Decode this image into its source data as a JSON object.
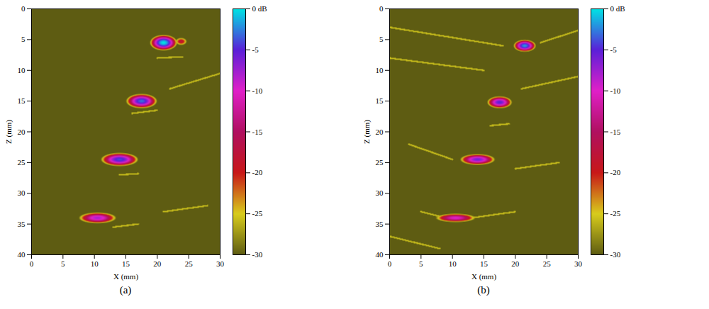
{
  "chart_data": [
    {
      "type": "heatmap",
      "caption": "(a)",
      "x_label": "X (mm)",
      "y_label": "Z (mm)",
      "xlim": [
        0,
        30
      ],
      "xticks": [
        0,
        5,
        10,
        15,
        20,
        25,
        30
      ],
      "ylim": [
        0,
        40
      ],
      "yticks": [
        0,
        5,
        10,
        15,
        20,
        25,
        30,
        35,
        40
      ],
      "background": -30,
      "spots": [
        {
          "x": 21,
          "z": 5.5,
          "peak": 0,
          "rx": 2.2,
          "rz": 1.3
        },
        {
          "x": 23.8,
          "z": 5.3,
          "peak": -18,
          "rx": 0.9,
          "rz": 0.6
        },
        {
          "x": 17.5,
          "z": 15,
          "peak": -3,
          "rx": 2.5,
          "rz": 1.2
        },
        {
          "x": 14,
          "z": 24.5,
          "peak": -4,
          "rx": 3,
          "rz": 1.1
        },
        {
          "x": 10.5,
          "z": 34,
          "peak": -8,
          "rx": 3,
          "rz": 0.9
        }
      ],
      "streak_level": -26,
      "streaks": [
        [
          20,
          8,
          24,
          7.8
        ],
        [
          22,
          13,
          30,
          10.5
        ],
        [
          16,
          17,
          20,
          16.5
        ],
        [
          14,
          27,
          17,
          26.8
        ],
        [
          21,
          33,
          28,
          32
        ],
        [
          13,
          35.5,
          17,
          35
        ]
      ],
      "colorbar": {
        "range": [
          -30,
          0
        ],
        "ticks": [
          {
            "value": 0,
            "label": "0 dB"
          },
          -5,
          -10,
          -15,
          -20,
          -25,
          -30
        ],
        "colors": [
          "#5e5c12",
          "#d8cc1c",
          "#c81818",
          "#b01060",
          "#e020c8",
          "#5a20d8",
          "#00e4e4"
        ]
      }
    },
    {
      "type": "heatmap",
      "caption": "(b)",
      "x_label": "X (mm)",
      "y_label": "Z (mm)",
      "xlim": [
        0,
        30
      ],
      "xticks": [
        0,
        5,
        10,
        15,
        20,
        25,
        30
      ],
      "ylim": [
        0,
        40
      ],
      "yticks": [
        0,
        5,
        10,
        15,
        20,
        25,
        30,
        35,
        40
      ],
      "background": -30,
      "spots": [
        {
          "x": 21.5,
          "z": 6,
          "peak": -2,
          "rx": 1.8,
          "rz": 1.0
        },
        {
          "x": 17.5,
          "z": 15.2,
          "peak": -5,
          "rx": 2,
          "rz": 1.0
        },
        {
          "x": 14,
          "z": 24.5,
          "peak": -6,
          "rx": 2.8,
          "rz": 0.9
        },
        {
          "x": 10.5,
          "z": 34,
          "peak": -10,
          "rx": 3.2,
          "rz": 0.7
        }
      ],
      "streak_level": -26,
      "streaks": [
        [
          0,
          3,
          18,
          6
        ],
        [
          24,
          5.5,
          30,
          3.5
        ],
        [
          0,
          8,
          15,
          10
        ],
        [
          21,
          13,
          30,
          11
        ],
        [
          3,
          22,
          10,
          24.5
        ],
        [
          20,
          26,
          27,
          25
        ],
        [
          5,
          33,
          9,
          34
        ],
        [
          13,
          34,
          20,
          33
        ],
        [
          0,
          37,
          8,
          39
        ],
        [
          16,
          19,
          19,
          18.7
        ]
      ],
      "colorbar": {
        "range": [
          -30,
          0
        ],
        "ticks": [
          {
            "value": 0,
            "label": "0 dB"
          },
          -5,
          -10,
          -15,
          -20,
          -25,
          -30
        ],
        "colors": [
          "#5e5c12",
          "#d8cc1c",
          "#c81818",
          "#b01060",
          "#e020c8",
          "#5a20d8",
          "#00e4e4"
        ]
      }
    }
  ]
}
